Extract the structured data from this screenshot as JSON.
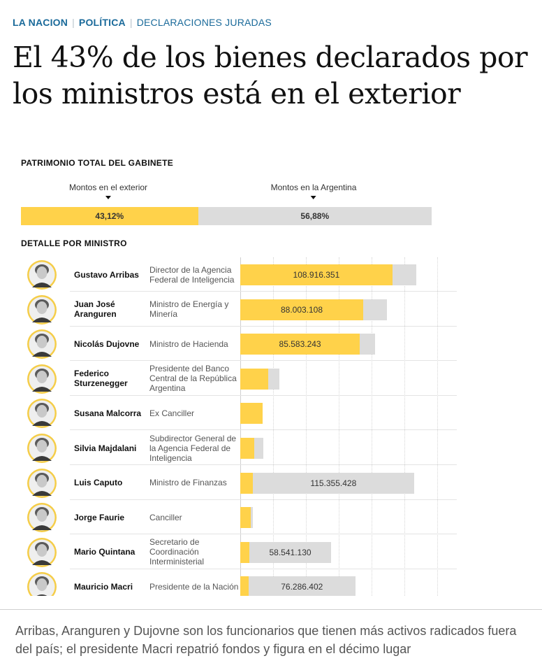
{
  "breadcrumb": {
    "site": "LA NACION",
    "section": "POLÍTICA",
    "topic": "DECLARACIONES JURADAS"
  },
  "headline": "El 43% de los bienes declarados por los ministros está en el exterior",
  "summary": {
    "title": "PATRIMONIO TOTAL DEL GABINETE",
    "exterior_caption": "Montos en el exterior",
    "argentina_caption": "Montos en la Argentina",
    "exterior_pct_label": "43,12%",
    "argentina_pct_label": "56,88%",
    "exterior_share": 43.12
  },
  "detail_title": "DETALLE POR MINISTRO",
  "subhead": "Arribas, Aranguren y Dujovne son los funcionarios que tienen más activos radicados fuera del país; el presidente Macri repatrió fondos y figura en el décimo lugar",
  "colors": {
    "exterior": "#ffd24a",
    "argentina": "#dcdcdc",
    "link": "#1a6a9a",
    "avatar_ring": "#f5cd48"
  },
  "chart_data": {
    "type": "bar",
    "orientation": "horizontal",
    "stacked": true,
    "series_names": [
      "Montos en el exterior",
      "Montos en la Argentina"
    ],
    "xlim": [
      0,
      155000000
    ],
    "rows": [
      {
        "name": "Gustavo Arribas",
        "role": "Director de la Agencia Federal de Inteligencia",
        "exterior": 108916351,
        "argentina": 17000000,
        "label": "108.916.351",
        "label_on": "exterior"
      },
      {
        "name": "Juan José Aranguren",
        "role": "Ministro de Energía y Minería",
        "exterior": 88003108,
        "argentina": 17000000,
        "label": "88.003.108",
        "label_on": "exterior"
      },
      {
        "name": "Nicolás Dujovne",
        "role": "Ministro de Hacienda",
        "exterior": 85583243,
        "argentina": 11000000,
        "label": "85.583.243",
        "label_on": "exterior"
      },
      {
        "name": "Federico Sturzenegger",
        "role": "Presidente del Banco Central de la República Argentina",
        "exterior": 20000000,
        "argentina": 8000000,
        "label": "",
        "label_on": "none"
      },
      {
        "name": "Susana Malcorra",
        "role": "Ex Canciller",
        "exterior": 16000000,
        "argentina": 0,
        "label": "",
        "label_on": "none"
      },
      {
        "name": "Silvia Majdalani",
        "role": "Subdirector General de la Agencia Federal de Inteligencia",
        "exterior": 10000000,
        "argentina": 6500000,
        "label": "",
        "label_on": "none"
      },
      {
        "name": "Luis Caputo",
        "role": "Ministro de Finanzas",
        "exterior": 9000000,
        "argentina": 115355428,
        "label": "115.355.428",
        "label_on": "argentina"
      },
      {
        "name": "Jorge Faurie",
        "role": "Canciller",
        "exterior": 7500000,
        "argentina": 1500000,
        "label": "",
        "label_on": "none"
      },
      {
        "name": "Mario Quintana",
        "role": "Secretario de Coordinación Interministerial",
        "exterior": 6500000,
        "argentina": 58541130,
        "label": "58.541.130",
        "label_on": "argentina"
      },
      {
        "name": "Mauricio Macri",
        "role": "Presidente de la Nación",
        "exterior": 6000000,
        "argentina": 76286402,
        "label": "76.286.402",
        "label_on": "argentina"
      }
    ]
  }
}
